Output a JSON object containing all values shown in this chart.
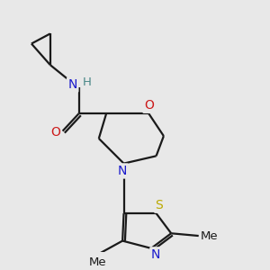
{
  "background_color": "#e8e8e8",
  "bond_color": "#1a1a1a",
  "bond_width": 1.6,
  "atom_colors": {
    "N": "#1a1acc",
    "O": "#cc1a1a",
    "S": "#bbaa00",
    "H": "#4a8888",
    "C": "#1a1a1a"
  },
  "font_size_atom": 10,
  "font_size_methyl": 9.5
}
